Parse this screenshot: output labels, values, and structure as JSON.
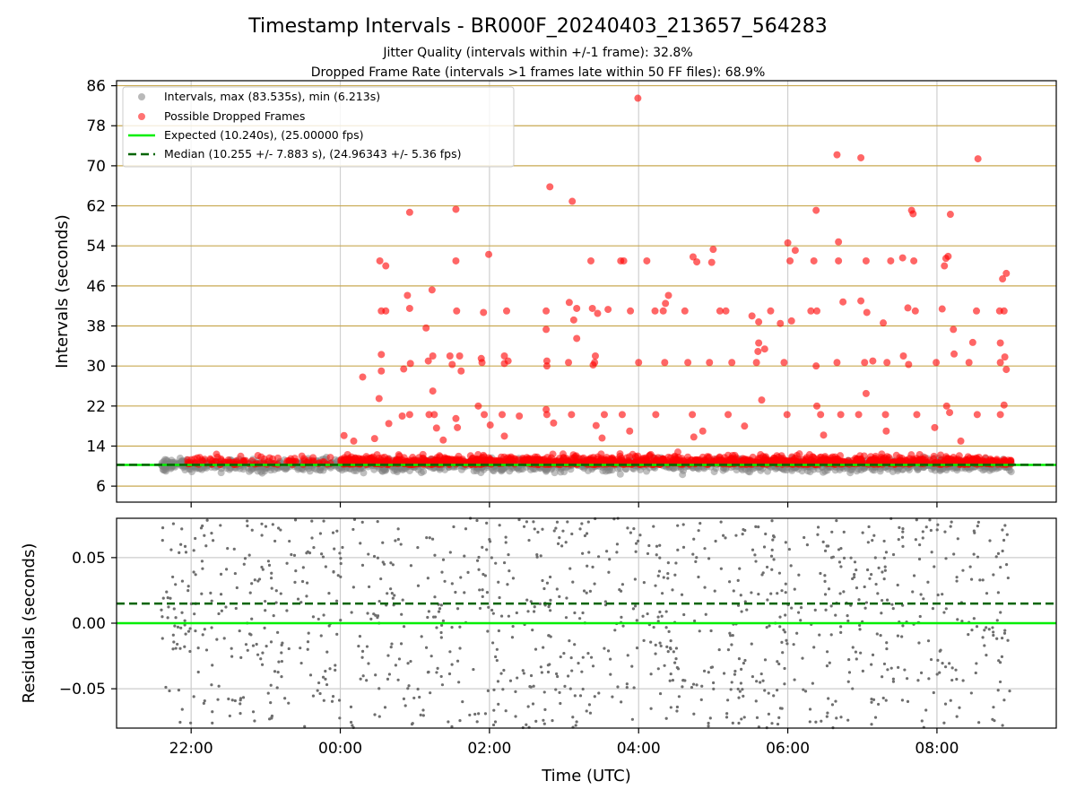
{
  "figure": {
    "title": "Timestamp Intervals - BR000F_20240403_213657_564283",
    "subtitle1": "Jitter Quality (intervals within +/-1 frame): 32.8%",
    "subtitle2": "Dropped Frame Rate (intervals >1 frames late within 50 FF files): 68.9%"
  },
  "chart_data": [
    {
      "type": "scatter",
      "panel": "top",
      "ylabel": "Intervals (seconds)",
      "ylim": [
        2.8,
        87
      ],
      "xlim_hours": [
        -3.0,
        9.6
      ],
      "yticks": [
        6,
        14,
        22,
        30,
        38,
        46,
        54,
        62,
        70,
        78,
        86
      ],
      "ytick_labels": [
        "6",
        "14",
        "22",
        "30",
        "38",
        "46",
        "54",
        "62",
        "70",
        "78",
        "86"
      ],
      "grid": true,
      "legend": {
        "placement": "top-left",
        "entries": [
          {
            "label": "Intervals, max (83.535s), min (6.213s)",
            "color": "#808080",
            "kind": "marker"
          },
          {
            "label": "Possible Dropped Frames",
            "color": "#ff0000",
            "kind": "marker"
          },
          {
            "label": "Expected (10.240s), (25.00000 fps)",
            "color": "#00ee00",
            "kind": "line"
          },
          {
            "label": "Median (10.255 +/- 7.883 s), (24.96343 +/- 5.36 fps)",
            "color": "#006400",
            "kind": "dashed"
          }
        ]
      },
      "expected_line": 10.24,
      "median_line": 10.255,
      "colors": {
        "intervals": "#808080",
        "dropped": "#ff0000",
        "expected": "#00ee00",
        "median": "#006400",
        "gridline": "#c8a850"
      },
      "series": [
        {
          "name": "Possible Dropped Frames (outliers, approx.)",
          "points": [
            [
              3.99,
              83.5
            ],
            [
              6.66,
              72.2
            ],
            [
              6.98,
              71.6
            ],
            [
              8.55,
              71.4
            ],
            [
              2.81,
              65.8
            ],
            [
              3.11,
              62.9
            ],
            [
              0.93,
              60.7
            ],
            [
              1.55,
              61.3
            ],
            [
              6.38,
              61.1
            ],
            [
              7.66,
              61.1
            ],
            [
              7.68,
              60.4
            ],
            [
              8.18,
              60.3
            ],
            [
              6.0,
              54.6
            ],
            [
              6.68,
              54.8
            ],
            [
              6.1,
              53.1
            ],
            [
              5.0,
              53.3
            ],
            [
              1.99,
              52.3
            ],
            [
              7.54,
              51.6
            ],
            [
              8.12,
              51.5
            ],
            [
              0.53,
              51.0
            ],
            [
              0.61,
              50.0
            ],
            [
              1.55,
              51.0
            ],
            [
              3.36,
              51.0
            ],
            [
              3.76,
              51.0
            ],
            [
              3.8,
              51.0
            ],
            [
              4.11,
              51.0
            ],
            [
              4.73,
              51.8
            ],
            [
              4.78,
              50.8
            ],
            [
              4.98,
              50.7
            ],
            [
              6.03,
              51.0
            ],
            [
              6.35,
              51.0
            ],
            [
              6.68,
              51.0
            ],
            [
              7.05,
              51.0
            ],
            [
              7.38,
              51.0
            ],
            [
              7.69,
              51.0
            ],
            [
              8.1,
              50.0
            ],
            [
              8.15,
              51.9
            ],
            [
              8.93,
              48.5
            ],
            [
              8.88,
              47.4
            ],
            [
              1.23,
              45.2
            ],
            [
              4.4,
              44.1
            ],
            [
              4.36,
              42.5
            ],
            [
              0.9,
              44.1
            ],
            [
              3.07,
              42.7
            ],
            [
              3.17,
              41.5
            ],
            [
              5.17,
              41.0
            ],
            [
              0.55,
              41.0
            ],
            [
              0.61,
              41.0
            ],
            [
              0.93,
              41.5
            ],
            [
              1.56,
              41.0
            ],
            [
              1.92,
              40.7
            ],
            [
              2.23,
              41.0
            ],
            [
              2.76,
              41.0
            ],
            [
              3.38,
              41.5
            ],
            [
              3.45,
              40.5
            ],
            [
              3.89,
              41.0
            ],
            [
              4.22,
              41.0
            ],
            [
              4.33,
              41.0
            ],
            [
              4.62,
              41.0
            ],
            [
              5.09,
              41.0
            ],
            [
              5.52,
              40.0
            ],
            [
              5.77,
              41.0
            ],
            [
              6.31,
              41.0
            ],
            [
              6.39,
              41.0
            ],
            [
              6.74,
              42.8
            ],
            [
              6.98,
              43.0
            ],
            [
              7.06,
              40.7
            ],
            [
              7.61,
              41.6
            ],
            [
              7.71,
              41.0
            ],
            [
              8.07,
              41.4
            ],
            [
              8.53,
              41.0
            ],
            [
              8.84,
              41.0
            ],
            [
              8.9,
              41.0
            ],
            [
              1.15,
              37.6
            ],
            [
              2.76,
              37.3
            ],
            [
              3.13,
              39.2
            ],
            [
              3.59,
              41.3
            ],
            [
              5.61,
              38.8
            ],
            [
              5.9,
              38.5
            ],
            [
              6.05,
              39.0
            ],
            [
              7.28,
              38.6
            ],
            [
              8.22,
              37.3
            ],
            [
              8.48,
              34.7
            ],
            [
              8.85,
              34.6
            ],
            [
              5.69,
              33.4
            ],
            [
              5.6,
              32.9
            ],
            [
              3.17,
              35.5
            ],
            [
              0.55,
              32.3
            ],
            [
              1.24,
              32.0
            ],
            [
              1.47,
              32.0
            ],
            [
              1.6,
              32.0
            ],
            [
              1.89,
              31.5
            ],
            [
              2.2,
              32.0
            ],
            [
              2.77,
              31.0
            ],
            [
              3.42,
              32.0
            ],
            [
              5.61,
              34.6
            ],
            [
              7.14,
              31.0
            ],
            [
              7.55,
              32.0
            ],
            [
              8.23,
              32.4
            ],
            [
              8.91,
              31.8
            ],
            [
              0.3,
              27.8
            ],
            [
              0.55,
              29.0
            ],
            [
              0.85,
              29.4
            ],
            [
              0.94,
              30.5
            ],
            [
              1.18,
              31.0
            ],
            [
              1.5,
              30.3
            ],
            [
              1.62,
              29.0
            ],
            [
              1.9,
              30.7
            ],
            [
              2.2,
              30.5
            ],
            [
              2.25,
              31.0
            ],
            [
              2.77,
              30.0
            ],
            [
              3.06,
              30.7
            ],
            [
              3.39,
              30.2
            ],
            [
              3.41,
              30.7
            ],
            [
              4.0,
              30.7
            ],
            [
              4.35,
              30.7
            ],
            [
              4.66,
              30.7
            ],
            [
              4.95,
              30.7
            ],
            [
              5.25,
              30.7
            ],
            [
              5.58,
              30.7
            ],
            [
              5.95,
              30.7
            ],
            [
              6.38,
              30.0
            ],
            [
              6.66,
              30.7
            ],
            [
              7.03,
              30.7
            ],
            [
              7.33,
              30.7
            ],
            [
              7.62,
              30.3
            ],
            [
              7.99,
              30.7
            ],
            [
              8.43,
              30.7
            ],
            [
              8.85,
              30.7
            ],
            [
              8.93,
              29.3
            ],
            [
              0.52,
              23.5
            ],
            [
              0.83,
              20.0
            ],
            [
              0.93,
              20.3
            ],
            [
              1.24,
              25.0
            ],
            [
              1.19,
              20.3
            ],
            [
              1.26,
              20.3
            ],
            [
              1.55,
              19.5
            ],
            [
              1.85,
              22.0
            ],
            [
              1.93,
              20.3
            ],
            [
              2.17,
              20.3
            ],
            [
              2.4,
              20.0
            ],
            [
              2.76,
              21.3
            ],
            [
              2.77,
              20.3
            ],
            [
              3.1,
              20.3
            ],
            [
              3.54,
              20.3
            ],
            [
              3.78,
              20.3
            ],
            [
              4.23,
              20.3
            ],
            [
              4.72,
              20.3
            ],
            [
              5.2,
              20.3
            ],
            [
              5.65,
              23.2
            ],
            [
              5.99,
              20.3
            ],
            [
              6.39,
              22.0
            ],
            [
              6.44,
              20.3
            ],
            [
              6.71,
              20.3
            ],
            [
              6.95,
              20.3
            ],
            [
              7.05,
              24.5
            ],
            [
              7.31,
              20.3
            ],
            [
              7.73,
              20.3
            ],
            [
              8.13,
              22.0
            ],
            [
              8.17,
              20.7
            ],
            [
              8.54,
              20.3
            ],
            [
              8.85,
              20.3
            ],
            [
              8.9,
              22.2
            ],
            [
              0.65,
              18.5
            ],
            [
              1.29,
              17.6
            ],
            [
              1.57,
              17.7
            ],
            [
              2.01,
              18.2
            ],
            [
              2.86,
              18.6
            ],
            [
              3.43,
              18.1
            ],
            [
              3.88,
              17.0
            ],
            [
              4.86,
              17.0
            ],
            [
              5.42,
              18.0
            ],
            [
              7.32,
              17.0
            ],
            [
              7.97,
              17.7
            ],
            [
              0.05,
              16.1
            ],
            [
              0.18,
              15.0
            ],
            [
              0.46,
              15.5
            ],
            [
              1.38,
              15.2
            ],
            [
              2.2,
              16.0
            ],
            [
              3.51,
              15.6
            ],
            [
              4.74,
              15.8
            ],
            [
              6.48,
              16.2
            ],
            [
              8.32,
              15.0
            ]
          ]
        }
      ]
    },
    {
      "type": "scatter",
      "panel": "bottom",
      "xlabel": "Time (UTC)",
      "ylabel": "Residuals (seconds)",
      "ylim": [
        -0.08,
        0.08
      ],
      "xlim_hours": [
        -3.0,
        9.6
      ],
      "yticks": [
        -0.05,
        0.0,
        0.05
      ],
      "ytick_labels": [
        "−0.05",
        "0.00",
        "0.05"
      ],
      "xticks_hours": [
        -2,
        0,
        2,
        4,
        6,
        8
      ],
      "xtick_labels": [
        "22:00",
        "00:00",
        "02:00",
        "04:00",
        "06:00",
        "08:00"
      ],
      "grid": true,
      "expected_residual": 0.0,
      "median_residual": 0.015,
      "colors": {
        "points": "#6e6e6e",
        "expected": "#00ee00",
        "median": "#006400",
        "grid": "#cccccc"
      },
      "series": [
        {
          "name": "Residuals",
          "x_range_hours": [
            -2.4,
            9.0
          ],
          "count_estimate": 1200
        }
      ]
    }
  ]
}
